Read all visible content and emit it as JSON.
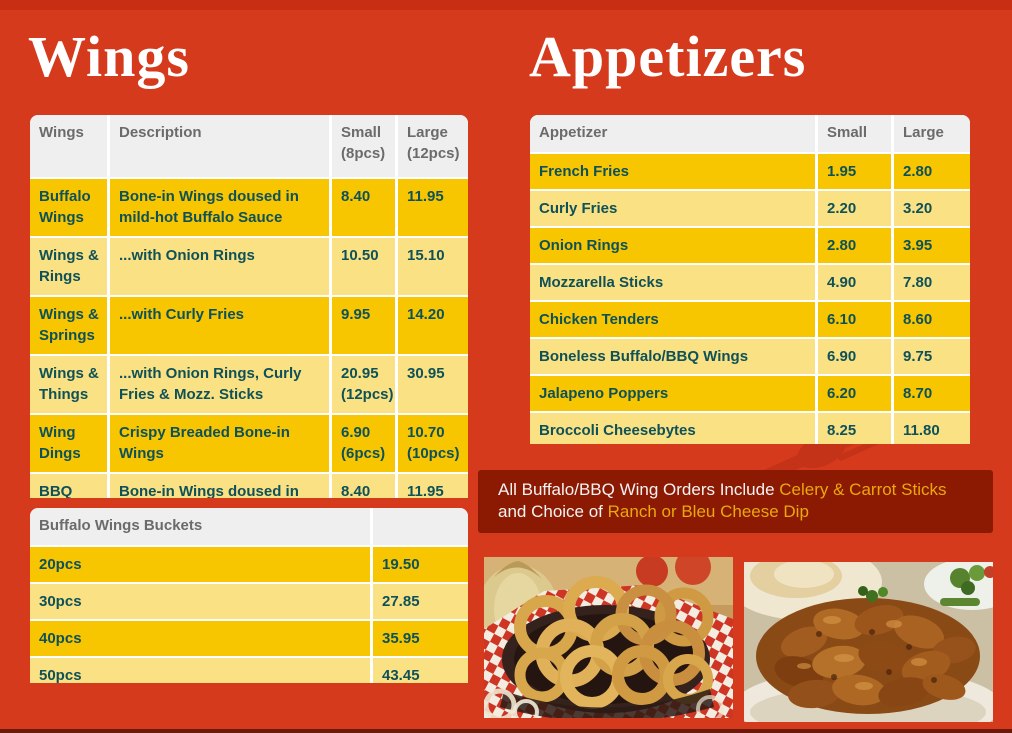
{
  "titles": {
    "wings": "Wings",
    "appetizers": "Appetizers"
  },
  "wings_table": {
    "headers": [
      "Wings",
      "Description",
      "Small (8pcs)",
      "Large (12pcs)"
    ],
    "rows": [
      [
        "Buffalo Wings",
        "Bone-in Wings doused in mild-hot Buffalo Sauce",
        "8.40",
        "11.95"
      ],
      [
        "Wings & Rings",
        "...with Onion Rings",
        "10.50",
        "15.10"
      ],
      [
        "Wings & Springs",
        "...with Curly Fries",
        "9.95",
        "14.20"
      ],
      [
        "Wings & Things",
        "...with Onion Rings, Curly Fries & Mozz. Sticks",
        "20.95 (12pcs)",
        "30.95"
      ],
      [
        "Wing Dings",
        "Crispy Breaded Bone-in Wings",
        "6.90 (6pcs)",
        "10.70 (10pcs)"
      ],
      [
        "BBQ",
        "Bone-in Wings doused in",
        "8.40",
        "11.95"
      ]
    ]
  },
  "buckets_table": {
    "headers": [
      "Buffalo Wings Buckets",
      ""
    ],
    "rows": [
      [
        "20pcs",
        "19.50"
      ],
      [
        "30pcs",
        "27.85"
      ],
      [
        "40pcs",
        "35.95"
      ],
      [
        "50pcs",
        "43.45"
      ]
    ]
  },
  "appetizers_table": {
    "headers": [
      "Appetizer",
      "Small",
      "Large"
    ],
    "rows": [
      [
        "French Fries",
        "1.95",
        "2.80"
      ],
      [
        "Curly Fries",
        "2.20",
        "3.20"
      ],
      [
        "Onion Rings",
        "2.80",
        "3.95"
      ],
      [
        "Mozzarella Sticks",
        "4.90",
        "7.80"
      ],
      [
        "Chicken Tenders",
        "6.10",
        "8.60"
      ],
      [
        "Boneless Buffalo/BBQ Wings",
        "6.90",
        "9.75"
      ],
      [
        "Jalapeno Poppers",
        "6.20",
        "8.70"
      ],
      [
        "Broccoli Cheesebytes",
        "8.25",
        "11.80"
      ]
    ]
  },
  "banner": {
    "line1_white": "All Buffalo/BBQ Wing Orders Include ",
    "line1_gold": "Celery & Carrot Sticks",
    "line2_white": "and Choice of ",
    "line2_gold": "Ranch or Bleu Cheese Dip"
  },
  "colors": {
    "background": "#d53a1d",
    "banner_background": "#8c1a03",
    "row_gold": "#f7c600",
    "row_light_yellow": "#fae184",
    "header_gray": "#efefef",
    "cell_text_teal": "#0e5158",
    "banner_gold_text": "#e9a80e",
    "title_white": "#ffffff"
  }
}
